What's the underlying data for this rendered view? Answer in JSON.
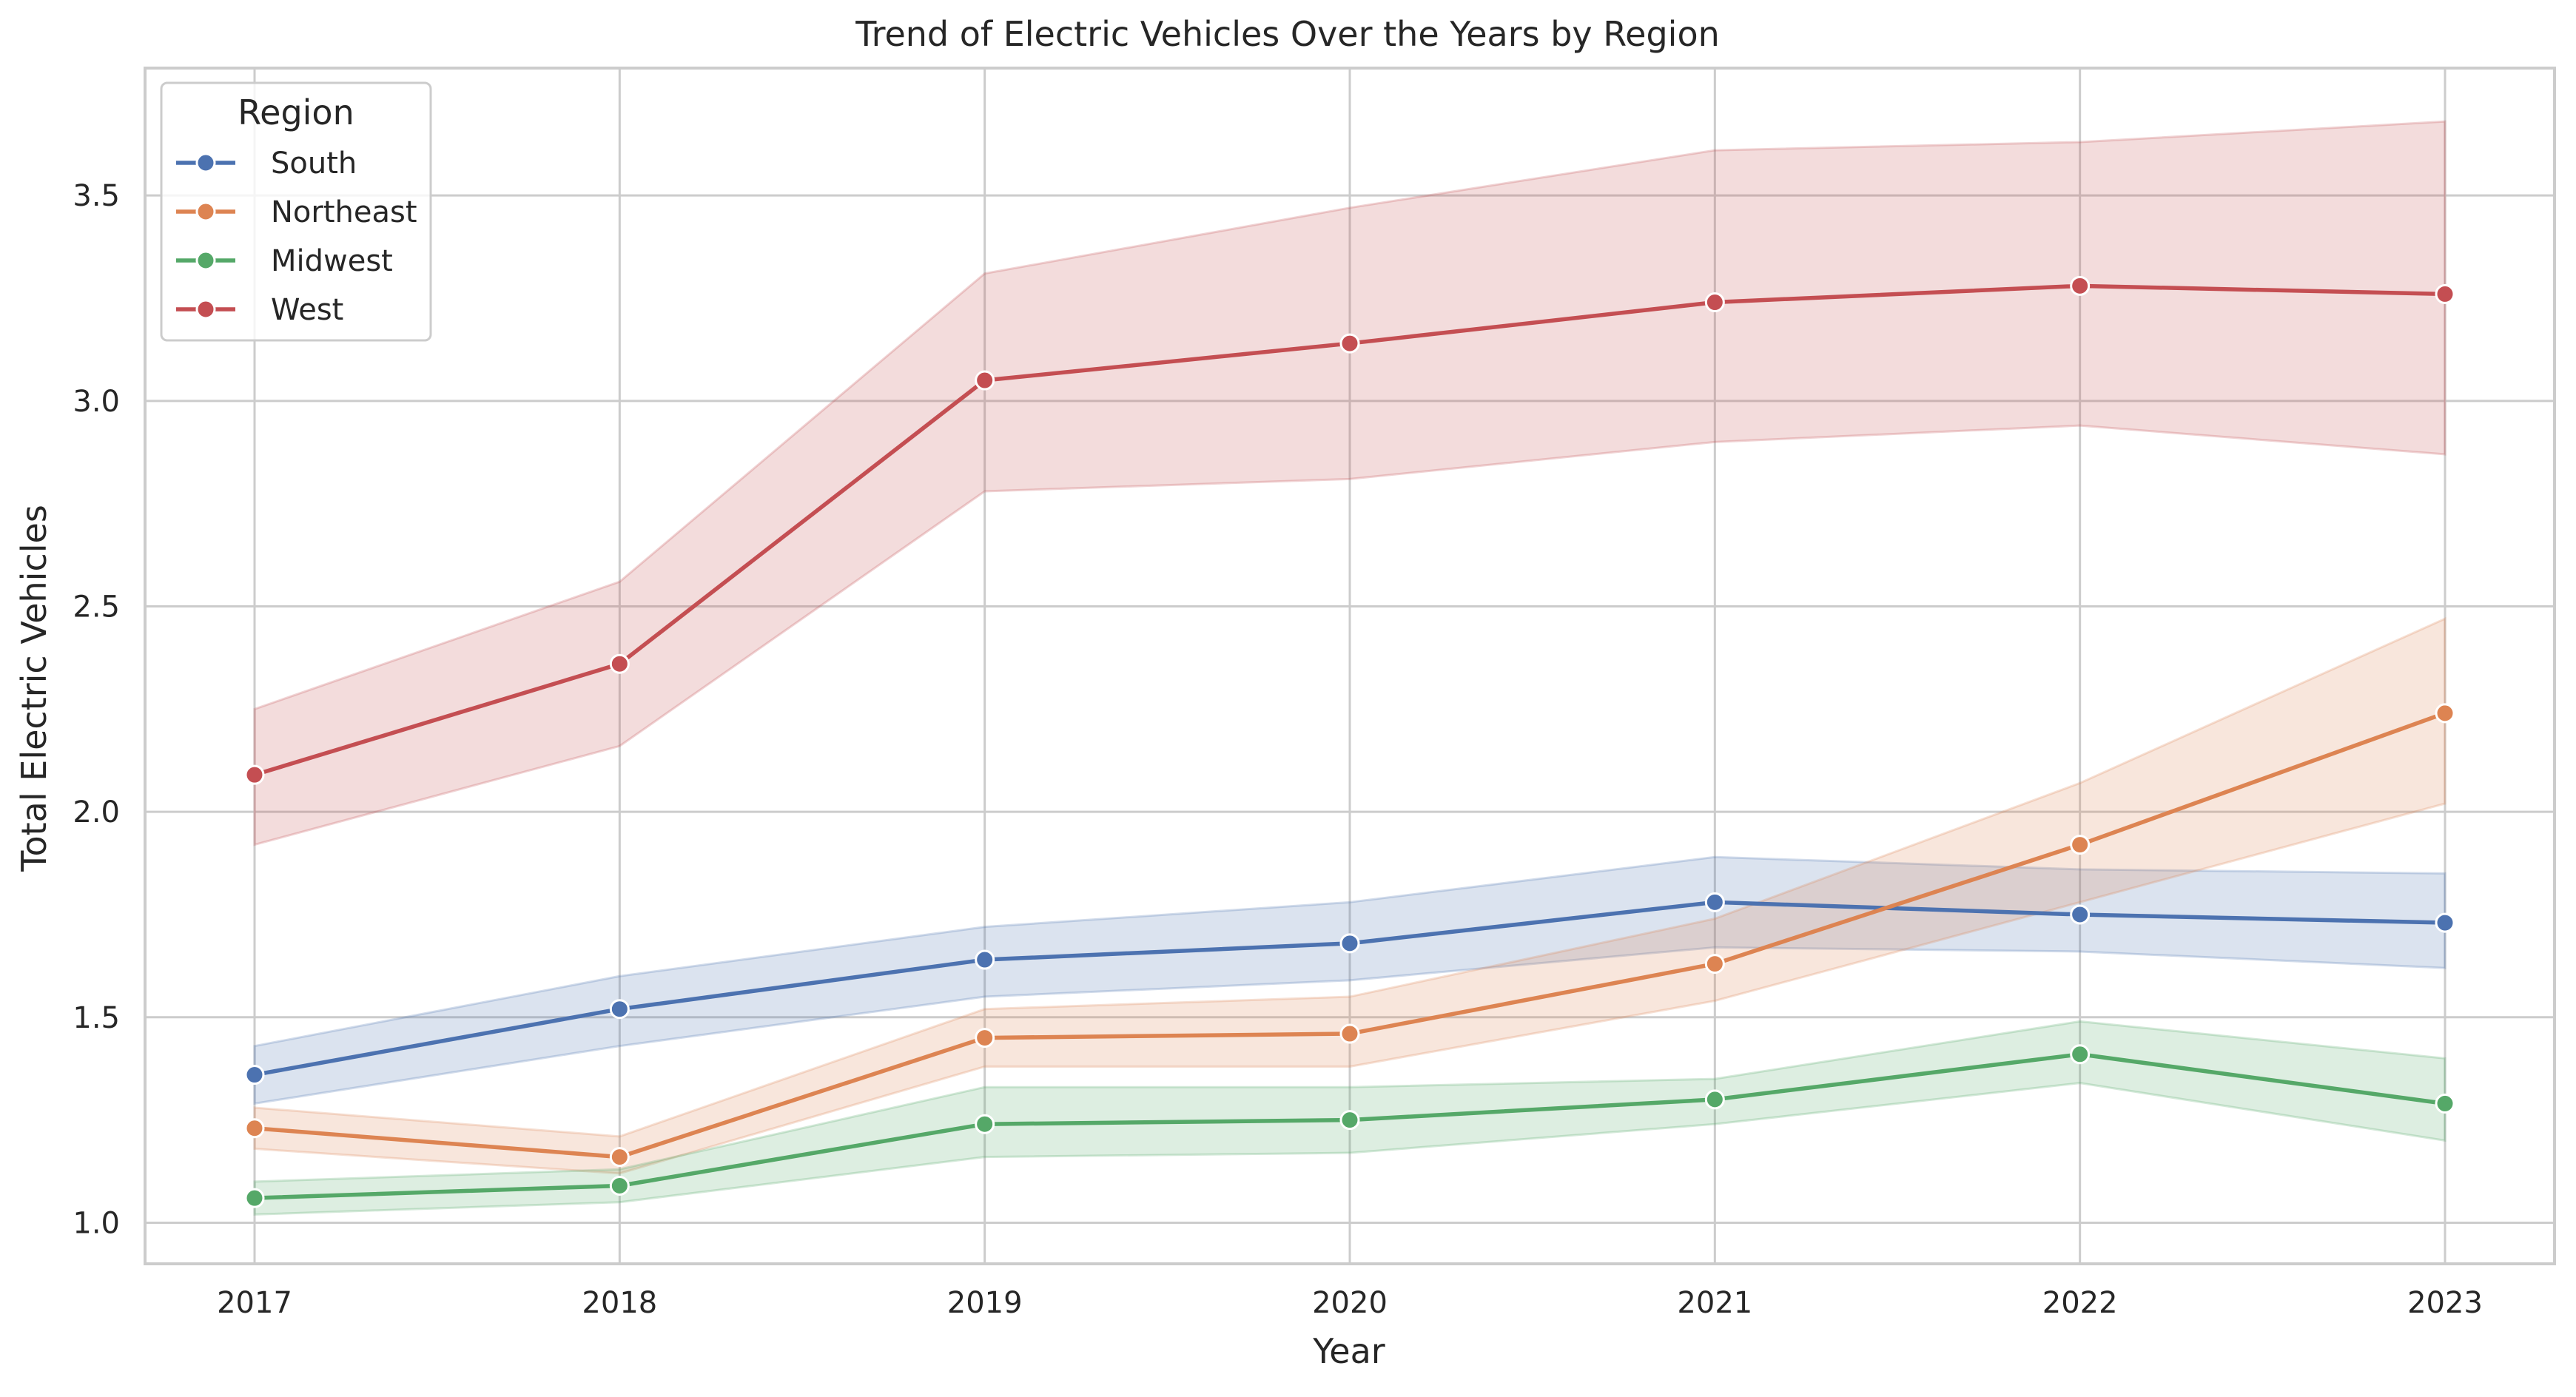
{
  "chart_data": {
    "type": "line",
    "title": "Trend of Electric Vehicles Over the Years by Region",
    "xlabel": "Year",
    "ylabel": "Total Electric Vehicles",
    "x": [
      2017,
      2018,
      2019,
      2020,
      2021,
      2022,
      2023
    ],
    "x_tick_labels": [
      "2017",
      "2018",
      "2019",
      "2020",
      "2021",
      "2022",
      "2023"
    ],
    "xlim": [
      2016.7,
      2023.3
    ],
    "ylim": [
      0.9,
      3.81
    ],
    "y_ticks": [
      1.0,
      1.5,
      2.0,
      2.5,
      3.0,
      3.5
    ],
    "y_tick_labels": [
      "1.0",
      "1.5",
      "2.0",
      "2.5",
      "3.0",
      "3.5"
    ],
    "grid": true,
    "markers": true,
    "confidence_band": true,
    "legend": {
      "title": "Region",
      "position": "top-left"
    },
    "series": [
      {
        "name": "South",
        "color": "#4c72b0",
        "values": [
          1.36,
          1.52,
          1.64,
          1.68,
          1.78,
          1.75,
          1.73
        ],
        "lower": [
          1.29,
          1.43,
          1.55,
          1.59,
          1.67,
          1.66,
          1.62
        ],
        "upper": [
          1.43,
          1.6,
          1.72,
          1.78,
          1.89,
          1.86,
          1.85
        ]
      },
      {
        "name": "Northeast",
        "color": "#dd8452",
        "values": [
          1.23,
          1.16,
          1.45,
          1.46,
          1.63,
          1.92,
          2.24
        ],
        "lower": [
          1.18,
          1.12,
          1.38,
          1.38,
          1.54,
          1.78,
          2.02
        ],
        "upper": [
          1.28,
          1.21,
          1.52,
          1.55,
          1.74,
          2.07,
          2.47
        ]
      },
      {
        "name": "Midwest",
        "color": "#55a868",
        "values": [
          1.06,
          1.09,
          1.24,
          1.25,
          1.3,
          1.41,
          1.29
        ],
        "lower": [
          1.02,
          1.05,
          1.16,
          1.17,
          1.24,
          1.34,
          1.2
        ],
        "upper": [
          1.1,
          1.13,
          1.33,
          1.33,
          1.35,
          1.49,
          1.4
        ]
      },
      {
        "name": "West",
        "color": "#c44e52",
        "values": [
          2.09,
          2.36,
          3.05,
          3.14,
          3.24,
          3.28,
          3.26
        ],
        "lower": [
          1.92,
          2.16,
          2.78,
          2.81,
          2.9,
          2.94,
          2.87
        ],
        "upper": [
          2.25,
          2.56,
          3.31,
          3.47,
          3.61,
          3.63,
          3.68
        ]
      }
    ]
  }
}
